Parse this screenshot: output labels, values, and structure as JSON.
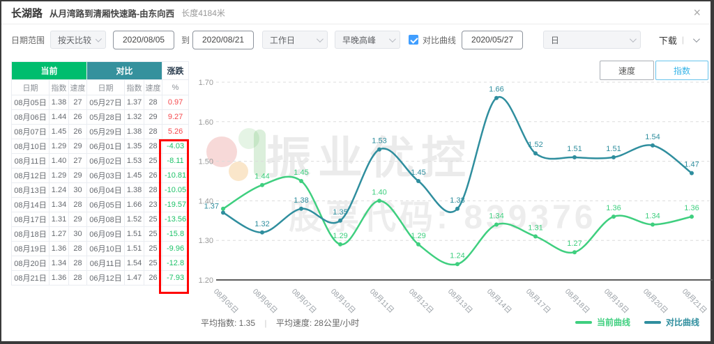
{
  "header": {
    "title": "长湖路",
    "subtitle": "从月湾路到清厢快速路-由东向西",
    "length": "长度4184米"
  },
  "filters": {
    "date_range_label": "日期范围",
    "compare_mode": "按天比较",
    "start_date": "2020/08/05",
    "to_label": "到",
    "end_date": "2020/08/21",
    "day_type": "工作日",
    "peak_type": "早晚高峰",
    "compare_checkbox_label": "对比曲线",
    "compare_date": "2020/05/27",
    "granularity": "日",
    "download_label": "下载",
    "download_divider": "|"
  },
  "table": {
    "group_headers": {
      "current": "当前",
      "compare": "对比",
      "change": "涨跌"
    },
    "columns": [
      "日期",
      "指数",
      "速度",
      "日期",
      "指数",
      "速度",
      "%"
    ],
    "rows": [
      [
        "08月05日",
        "1.38",
        "27",
        "05月27日",
        "1.37",
        "28",
        "0.97"
      ],
      [
        "08月06日",
        "1.44",
        "26",
        "05月28日",
        "1.32",
        "29",
        "9.27"
      ],
      [
        "08月07日",
        "1.45",
        "26",
        "05月29日",
        "1.38",
        "28",
        "5.26"
      ],
      [
        "08月10日",
        "1.29",
        "29",
        "06月01日",
        "1.35",
        "28",
        "-4.03"
      ],
      [
        "08月11日",
        "1.40",
        "27",
        "06月02日",
        "1.53",
        "25",
        "-8.11"
      ],
      [
        "08月12日",
        "1.29",
        "29",
        "06月03日",
        "1.45",
        "26",
        "-10.81"
      ],
      [
        "08月13日",
        "1.24",
        "30",
        "06月04日",
        "1.38",
        "28",
        "-10.05"
      ],
      [
        "08月14日",
        "1.34",
        "28",
        "06月05日",
        "1.66",
        "23",
        "-19.57"
      ],
      [
        "08月17日",
        "1.31",
        "29",
        "06月08日",
        "1.52",
        "25",
        "-13.56"
      ],
      [
        "08月18日",
        "1.27",
        "30",
        "06月09日",
        "1.51",
        "25",
        "-15.8"
      ],
      [
        "08月19日",
        "1.36",
        "28",
        "06月10日",
        "1.51",
        "25",
        "-9.96"
      ],
      [
        "08月20日",
        "1.34",
        "28",
        "06月11日",
        "1.54",
        "25",
        "-12.8"
      ],
      [
        "08月21日",
        "1.36",
        "28",
        "06月12日",
        "1.47",
        "26",
        "-7.93"
      ]
    ]
  },
  "chart_buttons": {
    "speed": "速度",
    "index": "指数"
  },
  "watermark": {
    "title": "振业优控",
    "subtitle": "股票代码: 839376"
  },
  "footer": {
    "avg_index": "平均指数: 1.35",
    "divider": "|",
    "avg_speed": "平均速度: 28公里/小时"
  },
  "legend": [
    {
      "name": "当前曲线",
      "color": "#3fcf7f"
    },
    {
      "name": "对比曲线",
      "color": "#2f8e9e"
    }
  ],
  "colors": {
    "table_header_green": "#00bd6e",
    "table_header_teal": "#35919d",
    "line_green": "#3fcf7f",
    "line_teal": "#2f8e9e",
    "positive_red": "#f5484d",
    "negative_green": "#1ec269",
    "annotation_red": "#ff0000",
    "active_tab_blue": "#35b3e7",
    "checkbox_blue": "#409eff"
  },
  "chart_data": {
    "type": "line",
    "title": "",
    "xlabel": "",
    "ylabel": "",
    "x": [
      "08月05日",
      "08月06日",
      "08月07日",
      "08月10日",
      "08月11日",
      "08月12日",
      "08月13日",
      "08月14日",
      "08月17日",
      "08月18日",
      "08月19日",
      "08月20日",
      "08月21日"
    ],
    "series": [
      {
        "name": "当前曲线",
        "color": "#3fcf7f",
        "values": [
          1.38,
          1.44,
          1.45,
          1.29,
          1.4,
          1.29,
          1.24,
          1.34,
          1.31,
          1.27,
          1.36,
          1.34,
          1.36
        ],
        "labels": [
          "",
          "1.44",
          "1.45",
          "1.29",
          "1.40",
          "1.29",
          "1.24",
          "1.34",
          "1.31",
          "1.27",
          "1.36",
          "1.34",
          "1.36"
        ]
      },
      {
        "name": "对比曲线",
        "color": "#2f8e9e",
        "values": [
          1.37,
          1.32,
          1.38,
          1.35,
          1.53,
          1.45,
          1.38,
          1.66,
          1.52,
          1.51,
          1.51,
          1.54,
          1.47
        ],
        "labels": [
          "1.37",
          "1.32",
          "1.38",
          "1.35",
          "1.53",
          "1.45",
          "1.38",
          "1.66",
          "1.52",
          "1.51",
          "1.51",
          "1.54",
          "1.47"
        ]
      }
    ],
    "ylim": [
      1.2,
      1.7
    ],
    "yticks": [
      1.2,
      1.3,
      1.4,
      1.5,
      1.6,
      1.7
    ],
    "grid": "dashed horizontal",
    "legend_position": "bottom-right"
  }
}
